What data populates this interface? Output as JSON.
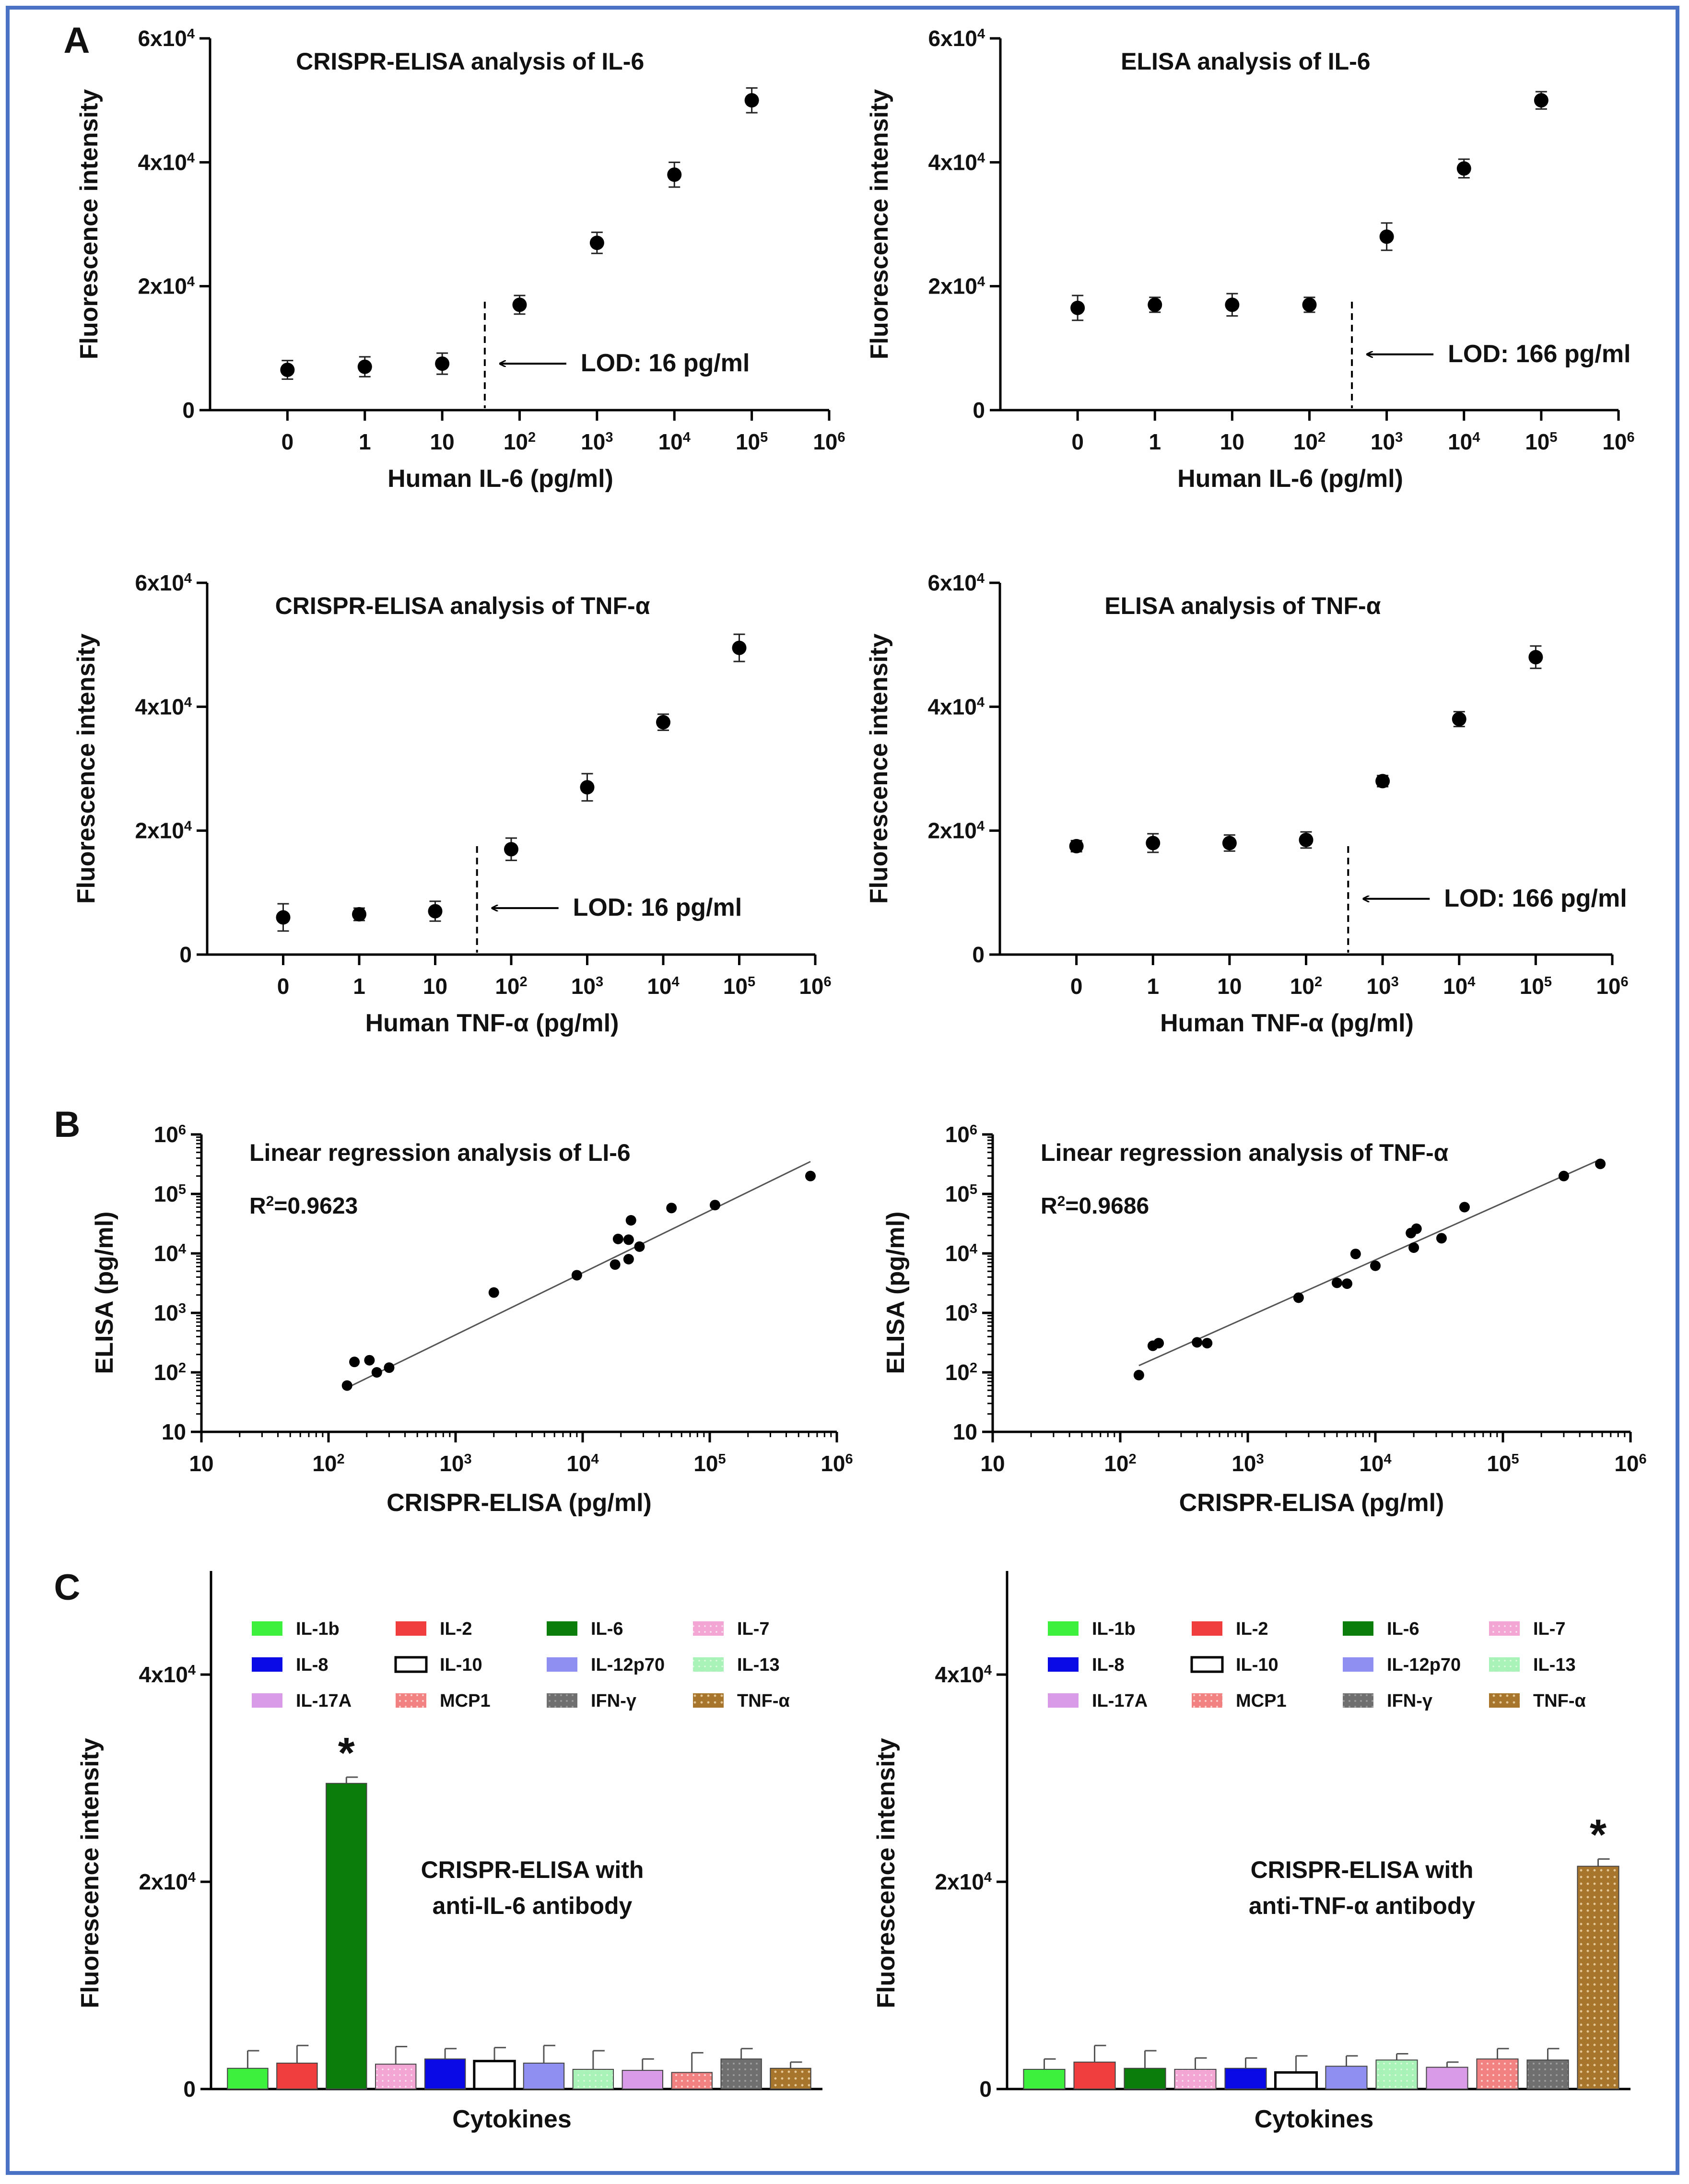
{
  "panel_labels": [
    "A",
    "B",
    "C"
  ],
  "chart_data": [
    {
      "type": "scatter",
      "id": "a1",
      "title": "CRISPR-ELISA analysis of IL-6",
      "xlabel": "Human IL-6 (pg/ml)",
      "ylabel": "Fluorescence intensity",
      "x_ticks": [
        "0",
        "1",
        "10",
        "10^2",
        "10^3",
        "10^4",
        "10^5",
        "10^6"
      ],
      "y_ticks": [
        "0",
        "2x10^4",
        "4x10^4",
        "6x10^4"
      ],
      "ylim": [
        0,
        60000
      ],
      "points": [
        {
          "x": "0",
          "y": 6500,
          "err": 1500
        },
        {
          "x": "1",
          "y": 7000,
          "err": 1600
        },
        {
          "x": "10",
          "y": 7500,
          "err": 1700
        },
        {
          "x": "10^2",
          "y": 17000,
          "err": 1500
        },
        {
          "x": "10^3",
          "y": 27000,
          "err": 1700
        },
        {
          "x": "10^4",
          "y": 38000,
          "err": 2000
        },
        {
          "x": "10^5",
          "y": 50000,
          "err": 2000
        }
      ],
      "lod_position": 3.55,
      "lod_label": "LOD: 16 pg/ml"
    },
    {
      "type": "scatter",
      "id": "a2",
      "title": "ELISA analysis of IL-6",
      "xlabel": "Human IL-6 (pg/ml)",
      "ylabel": "Fluorescence intensity",
      "x_ticks": [
        "0",
        "1",
        "10",
        "10^2",
        "10^3",
        "10^4",
        "10^5",
        "10^6"
      ],
      "y_ticks": [
        "0",
        "2x10^4",
        "4x10^4",
        "6x10^4"
      ],
      "ylim": [
        0,
        60000
      ],
      "points": [
        {
          "x": "0",
          "y": 16500,
          "err": 2000
        },
        {
          "x": "1",
          "y": 17000,
          "err": 1200
        },
        {
          "x": "10",
          "y": 17000,
          "err": 1800
        },
        {
          "x": "10^2",
          "y": 17000,
          "err": 1200
        },
        {
          "x": "10^3",
          "y": 28000,
          "err": 2200
        },
        {
          "x": "10^4",
          "y": 39000,
          "err": 1500
        },
        {
          "x": "10^5",
          "y": 50000,
          "err": 1400
        }
      ],
      "lod_position": 4.55,
      "lod_label": "LOD: 166 pg/ml"
    },
    {
      "type": "scatter",
      "id": "a3",
      "title": "CRISPR-ELISA analysis of TNF-α",
      "xlabel": "Human TNF-α (pg/ml)",
      "ylabel": "Fluorescence intensity",
      "x_ticks": [
        "0",
        "1",
        "10",
        "10^2",
        "10^3",
        "10^4",
        "10^5",
        "10^6"
      ],
      "y_ticks": [
        "0",
        "2x10^4",
        "4x10^4",
        "6x10^4"
      ],
      "ylim": [
        0,
        60000
      ],
      "points": [
        {
          "x": "0",
          "y": 6000,
          "err": 2200
        },
        {
          "x": "1",
          "y": 6500,
          "err": 1000
        },
        {
          "x": "10",
          "y": 7000,
          "err": 1600
        },
        {
          "x": "10^2",
          "y": 17000,
          "err": 1800
        },
        {
          "x": "10^3",
          "y": 27000,
          "err": 2200
        },
        {
          "x": "10^4",
          "y": 37500,
          "err": 1300
        },
        {
          "x": "10^5",
          "y": 49500,
          "err": 2200
        }
      ],
      "lod_position": 3.55,
      "lod_label": "LOD: 16 pg/ml"
    },
    {
      "type": "scatter",
      "id": "a4",
      "title": "ELISA analysis of TNF-α",
      "xlabel": "Human TNF-α (pg/ml)",
      "ylabel": "Fluorescence intensity",
      "x_ticks": [
        "0",
        "1",
        "10",
        "10^2",
        "10^3",
        "10^4",
        "10^5",
        "10^6"
      ],
      "y_ticks": [
        "0",
        "2x10^4",
        "4x10^4",
        "6x10^4"
      ],
      "ylim": [
        0,
        60000
      ],
      "points": [
        {
          "x": "0",
          "y": 17500,
          "err": 900
        },
        {
          "x": "1",
          "y": 18000,
          "err": 1500
        },
        {
          "x": "10",
          "y": 18000,
          "err": 1300
        },
        {
          "x": "10^2",
          "y": 18500,
          "err": 1300
        },
        {
          "x": "10^3",
          "y": 28000,
          "err": 900
        },
        {
          "x": "10^4",
          "y": 38000,
          "err": 1200
        },
        {
          "x": "10^5",
          "y": 48000,
          "err": 1800
        }
      ],
      "lod_position": 4.55,
      "lod_label": "LOD: 166 pg/ml"
    },
    {
      "type": "scatter",
      "id": "b1",
      "title": "Linear regression analysis of LI-6",
      "annotation": "R^2=0.9623",
      "xlabel": "CRISPR-ELISA (pg/ml)",
      "ylabel": "ELISA (pg/ml)",
      "x_ticks": [
        "10",
        "10^2",
        "10^3",
        "10^4",
        "10^5",
        "10^6"
      ],
      "y_ticks": [
        "10",
        "10^2",
        "10^3",
        "10^4",
        "10^5",
        "10^6"
      ],
      "log_range": [
        1,
        6
      ],
      "points": [
        [
          140,
          60
        ],
        [
          160,
          150
        ],
        [
          210,
          160
        ],
        [
          240,
          100
        ],
        [
          300,
          120
        ],
        [
          2000,
          2200
        ],
        [
          9000,
          4300
        ],
        [
          18000,
          6500
        ],
        [
          19000,
          17500
        ],
        [
          23000,
          17000
        ],
        [
          23000,
          8000
        ],
        [
          24000,
          36000
        ],
        [
          28000,
          13000
        ],
        [
          50000,
          58000
        ],
        [
          110000,
          65000
        ],
        [
          620000,
          200000
        ]
      ],
      "fit_line": {
        "from": [
          140,
          55
        ],
        "to": [
          620000,
          350000
        ]
      }
    },
    {
      "type": "scatter",
      "id": "b2",
      "title": "Linear regression analysis of TNF-α",
      "annotation": "R^2=0.9686",
      "xlabel": "CRISPR-ELISA (pg/ml)",
      "ylabel": "ELISA (pg/ml)",
      "x_ticks": [
        "10",
        "10^2",
        "10^3",
        "10^4",
        "10^5",
        "10^6"
      ],
      "y_ticks": [
        "10",
        "10^2",
        "10^3",
        "10^4",
        "10^5",
        "10^6"
      ],
      "log_range": [
        1,
        6
      ],
      "points": [
        [
          140,
          90
        ],
        [
          180,
          280
        ],
        [
          200,
          310
        ],
        [
          400,
          320
        ],
        [
          480,
          310
        ],
        [
          2500,
          1800
        ],
        [
          5000,
          3200
        ],
        [
          6000,
          3100
        ],
        [
          7000,
          9800
        ],
        [
          10000,
          6200
        ],
        [
          19000,
          22000
        ],
        [
          20000,
          12500
        ],
        [
          21000,
          26000
        ],
        [
          33000,
          18000
        ],
        [
          50000,
          60000
        ],
        [
          300000,
          200000
        ],
        [
          580000,
          320000
        ]
      ],
      "fit_line": {
        "from": [
          140,
          130
        ],
        "to": [
          580000,
          380000
        ]
      }
    },
    {
      "type": "bar",
      "id": "c1",
      "annotation_lines": [
        "CRISPR-ELISA with",
        "anti-IL-6 antibody"
      ],
      "xlabel": "Cytokines",
      "ylabel": "Fluorescence intensity",
      "y_ticks": [
        "0",
        "2x10^4",
        "4x10^4"
      ],
      "ylim": [
        0,
        50000
      ],
      "categories": [
        "IL-1b",
        "IL-2",
        "IL-6",
        "IL-7",
        "IL-8",
        "IL-10",
        "IL-12p70",
        "IL-13",
        "IL-17A",
        "MCP1",
        "IFN-γ",
        "TNF-α"
      ],
      "values": [
        2000,
        2500,
        29500,
        2400,
        2900,
        2700,
        2500,
        1900,
        1800,
        1600,
        2900,
        2000
      ],
      "errors": [
        1700,
        1700,
        600,
        1700,
        1000,
        1300,
        1700,
        1800,
        1100,
        1900,
        1000,
        600
      ],
      "significant": "IL-6",
      "significance_mark": "*"
    },
    {
      "type": "bar",
      "id": "c2",
      "annotation_lines": [
        "CRISPR-ELISA with",
        "anti-TNF-α antibody"
      ],
      "xlabel": "Cytokines",
      "ylabel": "Fluorescence intensity",
      "y_ticks": [
        "0",
        "2x10^4",
        "4x10^4"
      ],
      "ylim": [
        0,
        50000
      ],
      "categories": [
        "IL-1b",
        "IL-2",
        "IL-6",
        "IL-7",
        "IL-8",
        "IL-10",
        "IL-12p70",
        "IL-13",
        "IL-17A",
        "MCP1",
        "IFN-γ",
        "TNF-α"
      ],
      "values": [
        1900,
        2600,
        2000,
        1900,
        2000,
        1600,
        2200,
        2800,
        2100,
        2900,
        2800,
        21500
      ],
      "errors": [
        1000,
        1600,
        1700,
        1100,
        1000,
        1600,
        1000,
        600,
        500,
        1000,
        1100,
        700
      ],
      "significant": "TNF-α",
      "significance_mark": "*"
    }
  ],
  "legend_colors": {
    "IL-1b": "#3df03d",
    "IL-2": "#f03e3e",
    "IL-6": "#0a7d0a",
    "IL-7": "#f3a6d4",
    "IL-8": "#0a0ae6",
    "IL-10": "#ffffff",
    "IL-12p70": "#8f8ff2",
    "IL-13": "#a9f2b8",
    "IL-17A": "#d99ae8",
    "MCP1": "#f28282",
    "IFN-γ": "#6f6f6f",
    "TNF-α": "#a8752c"
  }
}
